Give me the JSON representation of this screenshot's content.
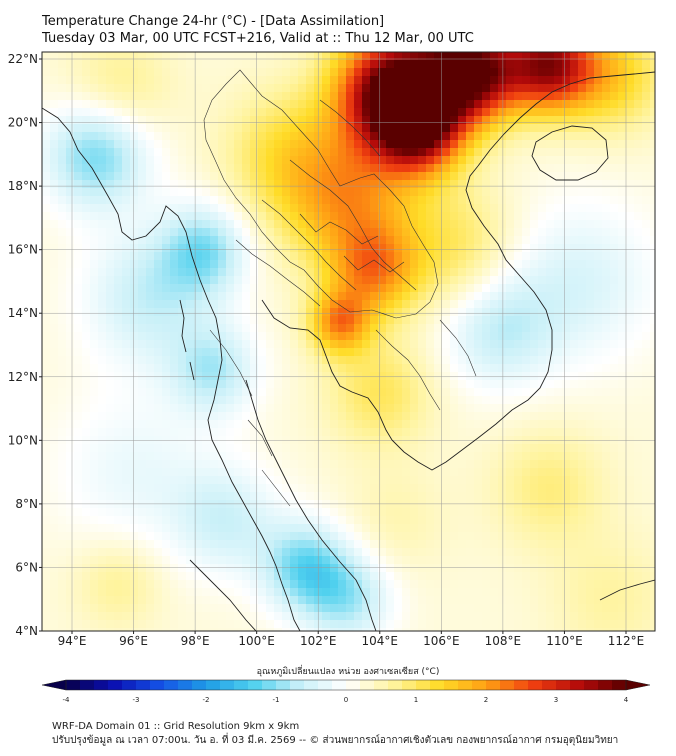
{
  "header": {
    "title_line1": "Temperature Change 24-hr (°C) - [Data Assimilation]",
    "title_line2": "Tuesday 03 Mar, 00 UTC FCST+216, Valid at :: Thu 12 Mar, 00 UTC"
  },
  "map": {
    "lat_labels": [
      "22°N",
      "20°N",
      "18°N",
      "16°N",
      "14°N",
      "12°N",
      "10°N",
      "8°N",
      "6°N",
      "4°N"
    ],
    "lon_labels": [
      "94°E",
      "96°E",
      "98°E",
      "100°E",
      "102°E",
      "104°E",
      "106°E",
      "108°E",
      "110°E",
      "112°E"
    ],
    "lat_range": [
      4,
      22
    ],
    "lon_range": [
      93,
      113
    ],
    "gridlines": true,
    "field_hotspots": [
      {
        "lon": 104.5,
        "lat": 21.0,
        "value": 4.0,
        "sigma": 1.3
      },
      {
        "lon": 107.0,
        "lat": 21.6,
        "value": 3.6,
        "sigma": 1.1
      },
      {
        "lon": 109.5,
        "lat": 21.8,
        "value": 3.0,
        "sigma": 1.0
      },
      {
        "lon": 105.3,
        "lat": 19.8,
        "value": 2.6,
        "sigma": 1.0
      },
      {
        "lon": 103.0,
        "lat": 17.5,
        "value": 1.6,
        "sigma": 1.5
      },
      {
        "lon": 103.8,
        "lat": 15.3,
        "value": 1.6,
        "sigma": 1.0
      },
      {
        "lon": 102.7,
        "lat": 13.7,
        "value": 1.8,
        "sigma": 0.7
      },
      {
        "lon": 106.5,
        "lat": 16.0,
        "value": 0.8,
        "sigma": 1.4
      },
      {
        "lon": 101.0,
        "lat": 19.0,
        "value": 0.9,
        "sigma": 1.4
      },
      {
        "lon": 104.0,
        "lat": 11.5,
        "value": 0.8,
        "sigma": 1.2
      },
      {
        "lon": 111.5,
        "lat": 21.5,
        "value": 1.2,
        "sigma": 1.2
      },
      {
        "lon": 95.5,
        "lat": 21.0,
        "value": 0.6,
        "sigma": 1.2
      },
      {
        "lon": 94.8,
        "lat": 19.0,
        "value": -1.4,
        "sigma": 1.2
      },
      {
        "lon": 98.3,
        "lat": 16.0,
        "value": -1.2,
        "sigma": 1.0
      },
      {
        "lon": 98.6,
        "lat": 12.2,
        "value": -1.0,
        "sigma": 1.0
      },
      {
        "lon": 96.5,
        "lat": 14.5,
        "value": -0.9,
        "sigma": 1.5
      },
      {
        "lon": 107.8,
        "lat": 13.5,
        "value": -0.9,
        "sigma": 1.3
      },
      {
        "lon": 110.5,
        "lat": 15.0,
        "value": -0.7,
        "sigma": 1.8
      },
      {
        "lon": 101.6,
        "lat": 6.0,
        "value": -1.4,
        "sigma": 1.0
      },
      {
        "lon": 103.0,
        "lat": 5.0,
        "value": -1.0,
        "sigma": 1.0
      },
      {
        "lon": 99.0,
        "lat": 7.5,
        "value": -0.8,
        "sigma": 1.2
      },
      {
        "lon": 96.0,
        "lat": 9.0,
        "value": -0.5,
        "sigma": 1.8
      },
      {
        "lon": 109.5,
        "lat": 8.5,
        "value": 0.6,
        "sigma": 1.3
      },
      {
        "lon": 104.5,
        "lat": 7.5,
        "value": 0.3,
        "sigma": 1.2
      },
      {
        "lon": 95.5,
        "lat": 5.5,
        "value": 0.5,
        "sigma": 1.0
      },
      {
        "lon": 111.5,
        "lat": 5.0,
        "value": 0.4,
        "sigma": 1.4
      }
    ]
  },
  "colorbar": {
    "label": "อุณหภูมิเปลี่ยนแปลง หน่วย องศาเซลเซียส (°C)",
    "min": -4,
    "max": 4,
    "step": 0.2,
    "ticks": [
      "-4",
      "-3",
      "-2",
      "-1",
      "0",
      "1",
      "2",
      "3",
      "4"
    ],
    "colors": [
      "#08004a",
      "#0a0fb0",
      "#1450e6",
      "#1e9be6",
      "#4fd0ee",
      "#c8f0f8",
      "#ffffff",
      "#fff4a0",
      "#ffdc28",
      "#ffa014",
      "#f04010",
      "#b40a0a",
      "#5a0000"
    ]
  },
  "footer": {
    "line1": "WRF-DA Domain 01 :: Grid Resolution 9km x 9km",
    "line2": "ปรับปรุงข้อมูล ณ เวลา 07:00น. วัน อ. ที่ 03 มี.ค. 2569 -- © ส่วนพยากรณ์อากาศเชิงตัวเลข กองพยากรณ์อากาศ กรมอุตุนิยมวิทยา"
  }
}
